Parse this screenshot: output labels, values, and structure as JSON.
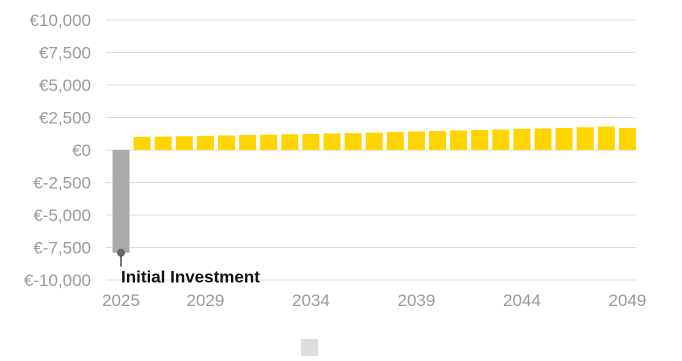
{
  "chart_data": {
    "type": "bar",
    "x": [
      2025,
      2026,
      2027,
      2028,
      2029,
      2030,
      2031,
      2032,
      2033,
      2034,
      2035,
      2036,
      2037,
      2038,
      2039,
      2040,
      2041,
      2042,
      2043,
      2044,
      2045,
      2046,
      2047,
      2048,
      2049
    ],
    "values": [
      -7900,
      1000,
      1030,
      1060,
      1090,
      1120,
      1150,
      1180,
      1210,
      1240,
      1270,
      1300,
      1340,
      1380,
      1420,
      1460,
      1500,
      1540,
      1580,
      1620,
      1660,
      1700,
      1750,
      1800,
      1700
    ],
    "colors": {
      "negative": "#aaaaaa",
      "positive": "#ffd400"
    },
    "ylim": [
      -10000,
      10000
    ],
    "yticks": [
      "€10,000",
      "€7,500",
      "€5,000",
      "€2,500",
      "€0",
      "€-2,500",
      "€-5,000",
      "€-7,500",
      "€-10,000"
    ],
    "ytick_values": [
      10000,
      7500,
      5000,
      2500,
      0,
      -2500,
      -5000,
      -7500,
      -10000
    ],
    "xticks": [
      "2025",
      "2029",
      "2034",
      "2039",
      "2044",
      "2049"
    ],
    "xtick_values": [
      2025,
      2029,
      2034,
      2039,
      2044,
      2049
    ],
    "grid": true,
    "annotation": {
      "text": "Initial Investment",
      "x": 2025,
      "y": -7900
    },
    "legend": {
      "placement": "bottom",
      "color": "#dddddd",
      "label": ""
    }
  }
}
